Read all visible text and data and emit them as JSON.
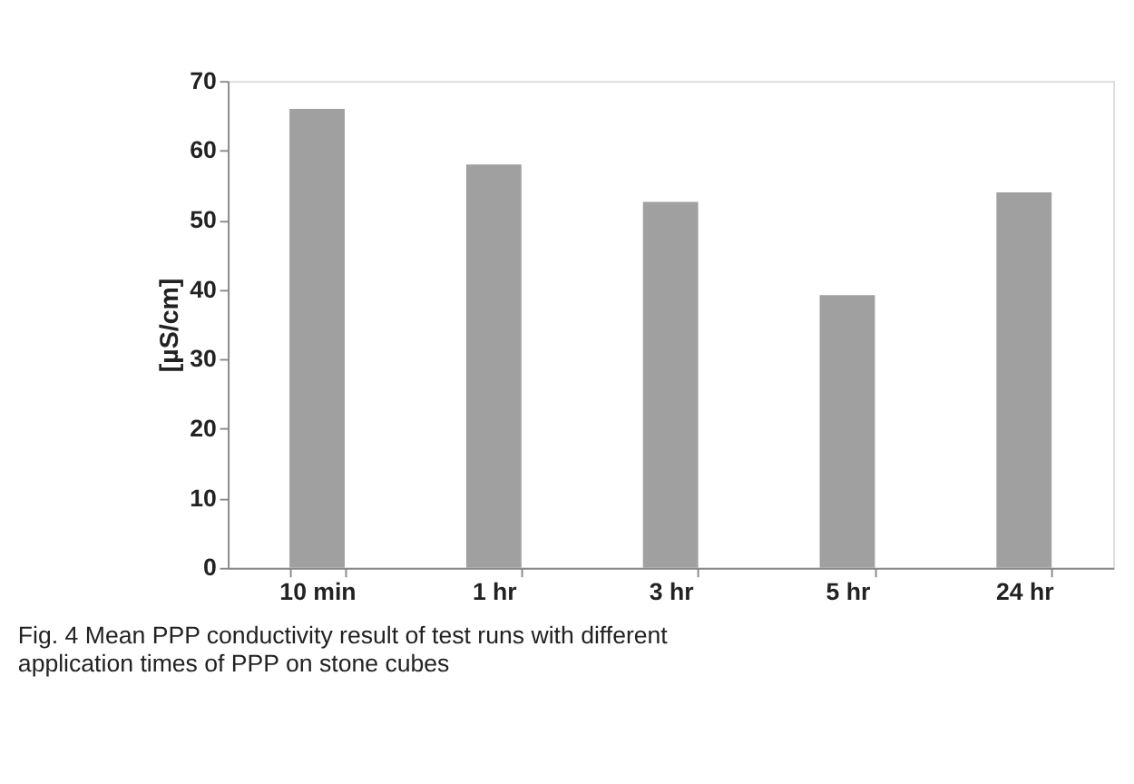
{
  "chart_data": {
    "type": "bar",
    "categories": [
      "10 min",
      "1 hr",
      "3 hr",
      "5 hr",
      "24 hr"
    ],
    "values": [
      66,
      58,
      52.6,
      39.2,
      54
    ],
    "color": "#a0a0a0",
    "ylabel": "[µS/cm]",
    "ylim": [
      0,
      70
    ],
    "yticks": [
      0,
      10,
      20,
      30,
      40,
      50,
      60,
      70
    ],
    "grid": false,
    "annotations": [
      "Fig. 4 Mean PPP conductivity result of test runs with different application times of PPP on stone cubes"
    ]
  }
}
